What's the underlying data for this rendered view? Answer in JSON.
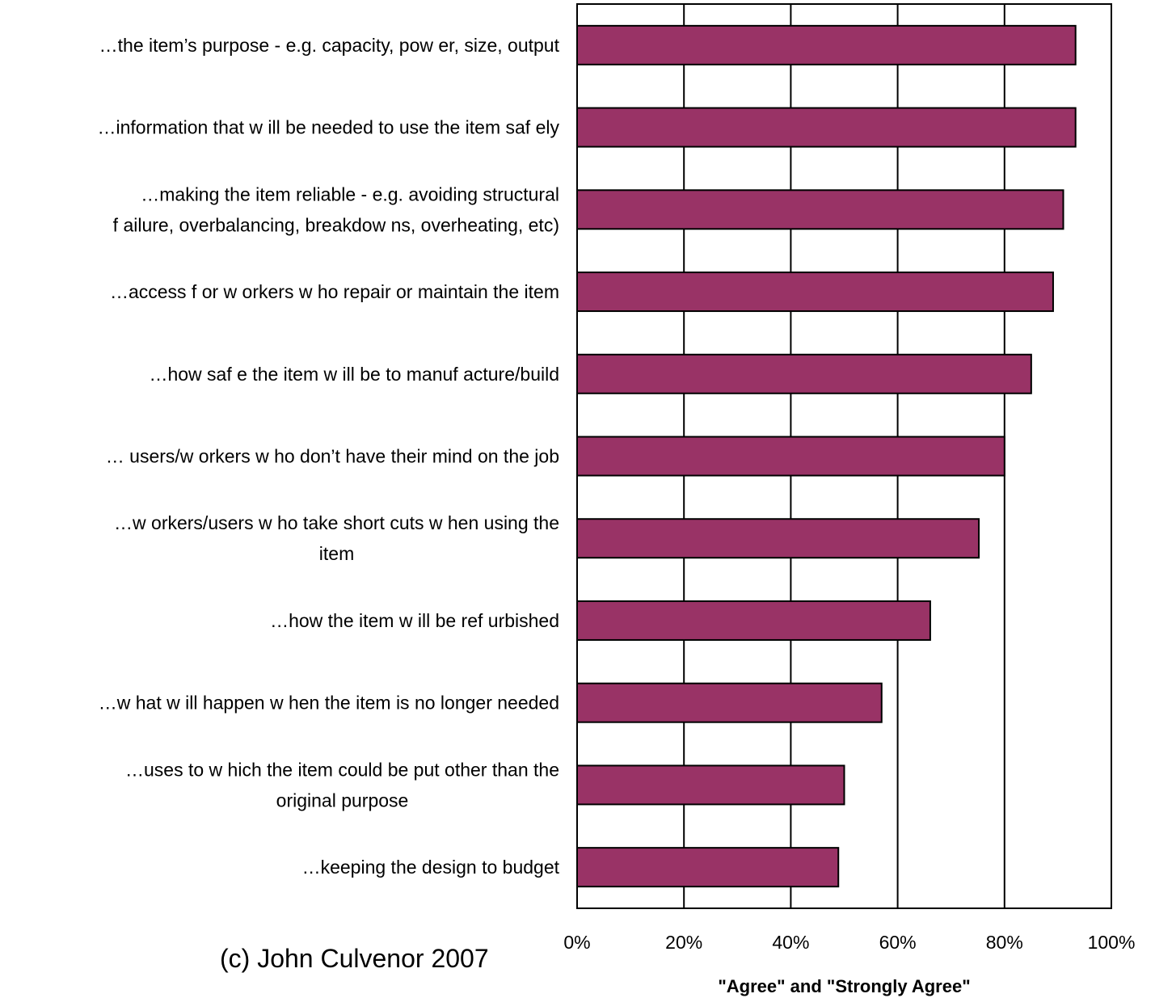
{
  "chart_data": {
    "type": "bar",
    "orientation": "horizontal",
    "categories": [
      "…the item’s purpose - e.g. capacity, pow er, size, output",
      "…information that w ill be needed to use the item saf ely",
      "…making the item reliable  - e.g. avoiding structural\nf ailure, overbalancing, breakdow ns, overheating, etc)",
      "…access f or w orkers w ho repair or maintain the item",
      "…how  saf e the item w ill be to manuf acture/build",
      "… users/w orkers w ho don’t have their mind on the job",
      "…w orkers/users w ho take short cuts w hen using the\nitem",
      "…how  the item w ill be ref urbished",
      "…w hat w ill happen w hen the item is no longer needed",
      "…uses to w hich the item could be put other than the\noriginal purpose",
      "…keeping the design to budget"
    ],
    "values": [
      93.3,
      93.3,
      91.0,
      89.1,
      85.0,
      80.0,
      75.2,
      66.1,
      57.0,
      50.0,
      48.9
    ],
    "units": "%",
    "xlabel": "\"Agree\" and \"Strongly Agree\"",
    "ylabel": "",
    "title": "",
    "xlim": [
      0,
      100
    ],
    "xticks": [
      "0%",
      "20%",
      "40%",
      "60%",
      "80%",
      "100%"
    ],
    "grid": true,
    "legend": "none",
    "bar_color": "#993366"
  },
  "credit": "(c) John Culvenor 2007"
}
